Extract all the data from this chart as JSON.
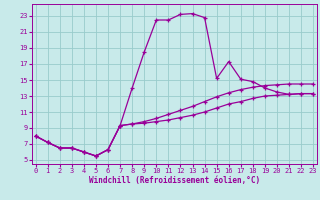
{
  "xlabel": "Windchill (Refroidissement éolien,°C)",
  "bg_color": "#c8eaea",
  "line_color": "#990099",
  "grid_color": "#99cccc",
  "line1_x": [
    0,
    1,
    2,
    3,
    4,
    5,
    6,
    7,
    8,
    9,
    10,
    11,
    12,
    13,
    14,
    15,
    16,
    17,
    18,
    19,
    20,
    21,
    22,
    23
  ],
  "line1_y": [
    8.0,
    7.2,
    6.5,
    6.5,
    6.0,
    5.5,
    6.3,
    9.3,
    14.0,
    18.5,
    22.5,
    22.5,
    23.2,
    23.3,
    22.8,
    15.2,
    17.3,
    15.1,
    14.8,
    14.0,
    13.5,
    13.2,
    13.3,
    13.3
  ],
  "line2_x": [
    0,
    1,
    2,
    3,
    4,
    5,
    6,
    7,
    8,
    9,
    10,
    11,
    12,
    13,
    14,
    15,
    16,
    17,
    18,
    19,
    20,
    21,
    22,
    23
  ],
  "line2_y": [
    8.0,
    7.2,
    6.5,
    6.5,
    6.0,
    5.5,
    6.3,
    9.3,
    9.5,
    9.6,
    9.8,
    10.0,
    10.3,
    10.6,
    11.0,
    11.5,
    12.0,
    12.3,
    12.7,
    13.0,
    13.1,
    13.2,
    13.3,
    13.3
  ],
  "line3_x": [
    0,
    1,
    2,
    3,
    4,
    5,
    6,
    7,
    8,
    9,
    10,
    11,
    12,
    13,
    14,
    15,
    16,
    17,
    18,
    19,
    20,
    21,
    22,
    23
  ],
  "line3_y": [
    8.0,
    7.2,
    6.5,
    6.5,
    6.0,
    5.5,
    6.3,
    9.3,
    9.5,
    9.8,
    10.2,
    10.7,
    11.2,
    11.7,
    12.3,
    12.9,
    13.4,
    13.8,
    14.1,
    14.3,
    14.4,
    14.5,
    14.5,
    14.5
  ],
  "ylim": [
    4.5,
    24.5
  ],
  "xlim": [
    -0.3,
    23.3
  ],
  "yticks": [
    5,
    7,
    9,
    11,
    13,
    15,
    17,
    19,
    21,
    23
  ],
  "xticks": [
    0,
    1,
    2,
    3,
    4,
    5,
    6,
    7,
    8,
    9,
    10,
    11,
    12,
    13,
    14,
    15,
    16,
    17,
    18,
    19,
    20,
    21,
    22,
    23
  ]
}
